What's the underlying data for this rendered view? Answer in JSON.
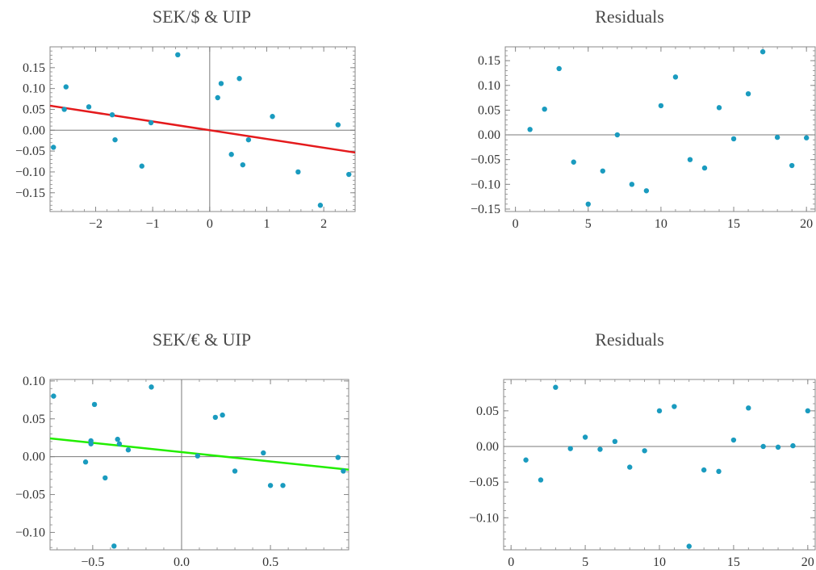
{
  "colors": {
    "point": "#1a9bbf",
    "frame": "#888888",
    "axis": "#7a7a7a",
    "tick": "#333333"
  },
  "chart_data": [
    {
      "type": "scatter",
      "title": "SEK/$ & UIP",
      "xlim": [
        -2.8,
        2.55
      ],
      "ylim": [
        -0.195,
        0.2
      ],
      "xticks": [
        -2,
        -1,
        0,
        1,
        2
      ],
      "xtick_labels": [
        "−2",
        "−1",
        "0",
        "1",
        "2"
      ],
      "yticks": [
        -0.15,
        -0.1,
        -0.05,
        0,
        0.05,
        0.1,
        0.15
      ],
      "ytick_labels": [
        "−0.15",
        "−0.10",
        "−0.05",
        "0.00",
        "0.05",
        "0.10",
        "0.15"
      ],
      "axes_origin": true,
      "fit_line": {
        "color": "#e41a1c",
        "intercept": 0.0,
        "slope": -0.021
      },
      "points": [
        [
          -2.74,
          -0.041
        ],
        [
          -2.55,
          0.05
        ],
        [
          -2.52,
          0.104
        ],
        [
          -2.12,
          0.056
        ],
        [
          -1.71,
          0.037
        ],
        [
          -1.66,
          -0.023
        ],
        [
          -1.19,
          -0.086
        ],
        [
          -1.03,
          0.018
        ],
        [
          -0.56,
          0.181
        ],
        [
          0.14,
          0.078
        ],
        [
          0.2,
          0.112
        ],
        [
          0.38,
          -0.058
        ],
        [
          0.52,
          0.124
        ],
        [
          0.58,
          -0.083
        ],
        [
          0.68,
          -0.023
        ],
        [
          1.1,
          0.033
        ],
        [
          1.55,
          -0.1
        ],
        [
          1.94,
          -0.18
        ],
        [
          2.25,
          0.013
        ],
        [
          2.44,
          -0.106
        ]
      ]
    },
    {
      "type": "scatter",
      "title": "Residuals",
      "xlim": [
        -0.7,
        20.6
      ],
      "ylim": [
        -0.155,
        0.178
      ],
      "xticks": [
        0,
        5,
        10,
        15,
        20
      ],
      "xtick_labels": [
        "0",
        "5",
        "10",
        "15",
        "20"
      ],
      "yticks": [
        -0.15,
        -0.1,
        -0.05,
        0,
        0.05,
        0.1,
        0.15
      ],
      "ytick_labels": [
        "−0.15",
        "−0.10",
        "−0.05",
        "0.00",
        "0.05",
        "0.10",
        "0.15"
      ],
      "zero_line": true,
      "points": [
        [
          1,
          0.011
        ],
        [
          2,
          0.052
        ],
        [
          3,
          0.134
        ],
        [
          4,
          -0.055
        ],
        [
          5,
          -0.14
        ],
        [
          6,
          -0.073
        ],
        [
          7,
          0.0
        ],
        [
          8,
          -0.1
        ],
        [
          9,
          -0.113
        ],
        [
          10,
          0.059
        ],
        [
          11,
          0.117
        ],
        [
          12,
          -0.05
        ],
        [
          13,
          -0.067
        ],
        [
          14,
          0.055
        ],
        [
          15,
          -0.008
        ],
        [
          16,
          0.083
        ],
        [
          17,
          0.168
        ],
        [
          18,
          -0.005
        ],
        [
          19,
          -0.062
        ],
        [
          20,
          -0.006
        ]
      ]
    },
    {
      "type": "scatter",
      "title": "SEK/€ & UIP",
      "xlim": [
        -0.74,
        0.94
      ],
      "ylim": [
        -0.123,
        0.102
      ],
      "xticks": [
        -0.5,
        0,
        0.5
      ],
      "xtick_labels": [
        "−0.5",
        "0.0",
        "0.5"
      ],
      "yticks": [
        -0.1,
        -0.05,
        0,
        0.05,
        0.1
      ],
      "ytick_labels": [
        "−0.10",
        "−0.05",
        "0.00",
        "0.05",
        "0.10"
      ],
      "axes_origin": true,
      "fit_line": {
        "color": "#22ee00",
        "intercept": 0.006,
        "slope": -0.0246
      },
      "points": [
        [
          -0.72,
          0.08
        ],
        [
          -0.54,
          -0.007
        ],
        [
          -0.51,
          0.021
        ],
        [
          -0.51,
          0.017
        ],
        [
          -0.49,
          0.069
        ],
        [
          -0.43,
          -0.028
        ],
        [
          -0.38,
          -0.118
        ],
        [
          -0.36,
          0.023
        ],
        [
          -0.35,
          0.017
        ],
        [
          -0.3,
          0.009
        ],
        [
          -0.17,
          0.092
        ],
        [
          0.09,
          0.001
        ],
        [
          0.19,
          0.052
        ],
        [
          0.23,
          0.055
        ],
        [
          0.3,
          -0.019
        ],
        [
          0.46,
          0.005
        ],
        [
          0.5,
          -0.038
        ],
        [
          0.57,
          -0.038
        ],
        [
          0.88,
          -0.001
        ],
        [
          0.91,
          -0.019
        ]
      ]
    },
    {
      "type": "scatter",
      "title": "Residuals",
      "xlim": [
        -0.5,
        20.5
      ],
      "ylim": [
        -0.145,
        0.094
      ],
      "xticks": [
        0,
        5,
        10,
        15,
        20
      ],
      "xtick_labels": [
        "0",
        "5",
        "10",
        "15",
        "20"
      ],
      "yticks": [
        -0.1,
        -0.05,
        0,
        0.05
      ],
      "ytick_labels": [
        "−0.10",
        "−0.05",
        "0.00",
        "0.05"
      ],
      "zero_line": true,
      "points": [
        [
          1,
          -0.019
        ],
        [
          2,
          -0.047
        ],
        [
          3,
          0.083
        ],
        [
          4,
          -0.003
        ],
        [
          5,
          0.013
        ],
        [
          6,
          -0.004
        ],
        [
          7,
          0.007
        ],
        [
          8,
          -0.029
        ],
        [
          9,
          -0.006
        ],
        [
          10,
          0.05
        ],
        [
          11,
          0.056
        ],
        [
          12,
          -0.14
        ],
        [
          13,
          -0.033
        ],
        [
          14,
          -0.035
        ],
        [
          15,
          0.009
        ],
        [
          16,
          0.054
        ],
        [
          17,
          0.0
        ],
        [
          18,
          -0.001
        ],
        [
          19,
          0.001
        ],
        [
          20,
          0.05
        ]
      ]
    }
  ]
}
